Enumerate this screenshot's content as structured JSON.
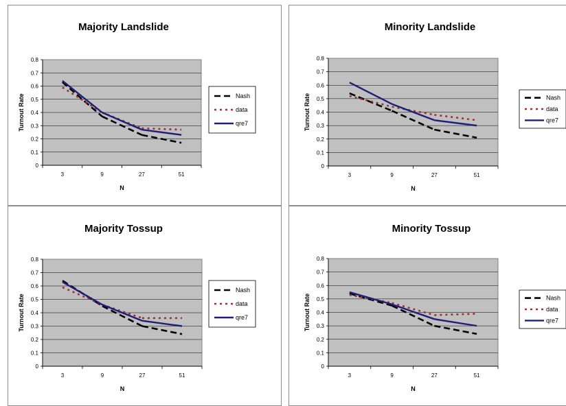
{
  "chart_data": [
    {
      "type": "line",
      "title": "Majority Landslide",
      "xlabel": "N",
      "ylabel": "Turnout Rate",
      "categories": [
        "3",
        "9",
        "27",
        "51"
      ],
      "ylim": [
        0,
        0.8
      ],
      "yticks": [
        "0",
        "0.1",
        "0.2",
        "0.3",
        "0.4",
        "0.5",
        "0.6",
        "0.7",
        "0.8"
      ],
      "grid": true,
      "legend_position": "right",
      "series": [
        {
          "name": "Nash",
          "values": [
            0.63,
            0.37,
            0.23,
            0.17
          ],
          "color": "#000000",
          "style": "dashed"
        },
        {
          "name": "data",
          "values": [
            0.59,
            0.4,
            0.28,
            0.27
          ],
          "color": "#993333",
          "style": "dotted"
        },
        {
          "name": "qre7",
          "values": [
            0.64,
            0.4,
            0.27,
            0.23
          ],
          "color": "#1f1f7a",
          "style": "solid"
        }
      ]
    },
    {
      "type": "line",
      "title": "Minority Landslide",
      "xlabel": "N",
      "ylabel": "Turnout Rate",
      "categories": [
        "3",
        "9",
        "27",
        "51"
      ],
      "ylim": [
        0,
        0.8
      ],
      "yticks": [
        "0",
        "0.1",
        "0.2",
        "0.3",
        "0.4",
        "0.5",
        "0.6",
        "0.7",
        "0.8"
      ],
      "grid": true,
      "legend_position": "right",
      "series": [
        {
          "name": "Nash",
          "values": [
            0.54,
            0.41,
            0.27,
            0.21
          ],
          "color": "#000000",
          "style": "dashed"
        },
        {
          "name": "data",
          "values": [
            0.52,
            0.44,
            0.38,
            0.34
          ],
          "color": "#993333",
          "style": "dotted"
        },
        {
          "name": "qre7",
          "values": [
            0.62,
            0.46,
            0.34,
            0.3
          ],
          "color": "#1f1f7a",
          "style": "solid"
        }
      ]
    },
    {
      "type": "line",
      "title": "Majority Tossup",
      "xlabel": "N",
      "ylabel": "Turnout Rate",
      "categories": [
        "3",
        "9",
        "27",
        "51"
      ],
      "ylim": [
        0,
        0.8
      ],
      "yticks": [
        "0",
        "0.1",
        "0.2",
        "0.3",
        "0.4",
        "0.5",
        "0.6",
        "0.7",
        "0.8"
      ],
      "grid": true,
      "legend_position": "right",
      "series": [
        {
          "name": "Nash",
          "values": [
            0.64,
            0.45,
            0.3,
            0.24
          ],
          "color": "#000000",
          "style": "dashed"
        },
        {
          "name": "data",
          "values": [
            0.59,
            0.46,
            0.36,
            0.36
          ],
          "color": "#993333",
          "style": "dotted"
        },
        {
          "name": "qre7",
          "values": [
            0.63,
            0.46,
            0.34,
            0.3
          ],
          "color": "#1f1f7a",
          "style": "solid"
        }
      ]
    },
    {
      "type": "line",
      "title": "Minority Tossup",
      "xlabel": "N",
      "ylabel": "Turnout Rate",
      "categories": [
        "3",
        "9",
        "27",
        "51"
      ],
      "ylim": [
        0,
        0.8
      ],
      "yticks": [
        "0",
        "0.1",
        "0.2",
        "0.3",
        "0.4",
        "0.5",
        "0.6",
        "0.7",
        "0.8"
      ],
      "grid": true,
      "legend_position": "right",
      "series": [
        {
          "name": "Nash",
          "values": [
            0.54,
            0.45,
            0.3,
            0.24
          ],
          "color": "#000000",
          "style": "dashed"
        },
        {
          "name": "data",
          "values": [
            0.53,
            0.47,
            0.38,
            0.39
          ],
          "color": "#993333",
          "style": "dotted"
        },
        {
          "name": "qre7",
          "values": [
            0.55,
            0.46,
            0.35,
            0.3
          ],
          "color": "#1f1f7a",
          "style": "solid"
        }
      ]
    }
  ]
}
